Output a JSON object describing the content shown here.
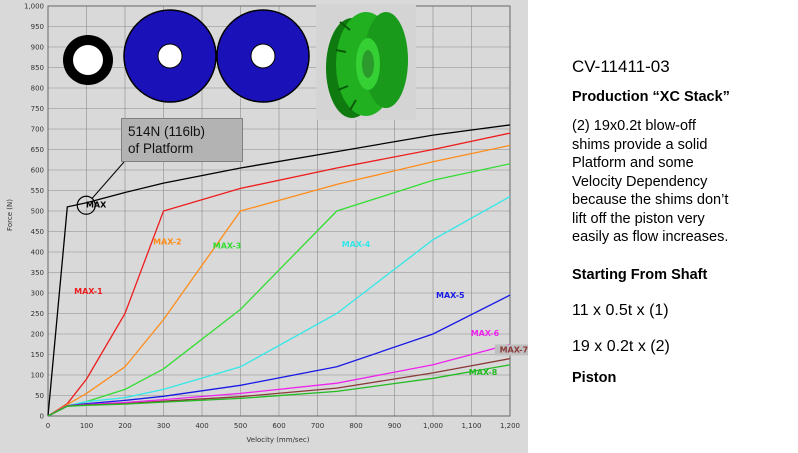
{
  "chart_data": {
    "type": "line",
    "title": "",
    "xlabel": "Velocity (mm/sec)",
    "ylabel": "Force (N)",
    "xlim": [
      0,
      1200
    ],
    "ylim": [
      0,
      1000
    ],
    "xticks": [
      0,
      100,
      200,
      300,
      400,
      500,
      600,
      700,
      800,
      900,
      1000,
      1100,
      1200
    ],
    "yticks": [
      0,
      50,
      100,
      150,
      200,
      250,
      300,
      350,
      400,
      450,
      500,
      550,
      600,
      650,
      700,
      750,
      800,
      850,
      900,
      950,
      1000
    ],
    "xtick_labels": [
      "0",
      "100",
      "200",
      "300",
      "400",
      "500",
      "600",
      "700",
      "800",
      "900",
      "1,000",
      "1,100",
      "1,200"
    ],
    "ytick_labels": [
      "0",
      "50",
      "100",
      "150",
      "200",
      "250",
      "300",
      "350",
      "400",
      "450",
      "500",
      "550",
      "600",
      "650",
      "700",
      "750",
      "800",
      "850",
      "900",
      "950",
      "1,000"
    ],
    "grid": true,
    "series": [
      {
        "name": "MAX",
        "color": "#000000",
        "x": [
          0,
          50,
          100,
          200,
          300,
          500,
          750,
          1000,
          1200
        ],
        "y": [
          0,
          510,
          520,
          545,
          568,
          605,
          645,
          685,
          710
        ]
      },
      {
        "name": "MAX-1",
        "color": "#ee1c1c",
        "x": [
          0,
          50,
          100,
          200,
          300,
          500,
          750,
          1000,
          1200
        ],
        "y": [
          0,
          30,
          90,
          250,
          500,
          555,
          605,
          650,
          690
        ]
      },
      {
        "name": "MAX-2",
        "color": "#ff8c1a",
        "x": [
          0,
          50,
          100,
          200,
          300,
          500,
          750,
          1000,
          1200
        ],
        "y": [
          0,
          28,
          55,
          120,
          235,
          500,
          565,
          620,
          660
        ]
      },
      {
        "name": "MAX-3",
        "color": "#33dd33",
        "x": [
          0,
          50,
          100,
          200,
          300,
          500,
          750,
          1000,
          1200
        ],
        "y": [
          0,
          25,
          35,
          65,
          115,
          260,
          500,
          575,
          615
        ]
      },
      {
        "name": "MAX-4",
        "color": "#33e8e8",
        "x": [
          0,
          50,
          100,
          200,
          300,
          500,
          750,
          1000,
          1200
        ],
        "y": [
          0,
          25,
          35,
          45,
          65,
          120,
          250,
          430,
          535
        ]
      },
      {
        "name": "MAX-5",
        "color": "#1a1ae6",
        "x": [
          0,
          50,
          100,
          200,
          300,
          500,
          750,
          1000,
          1200
        ],
        "y": [
          0,
          25,
          30,
          38,
          48,
          75,
          120,
          200,
          295
        ]
      },
      {
        "name": "MAX-6",
        "color": "#ee22ee",
        "x": [
          0,
          50,
          100,
          200,
          300,
          500,
          750,
          1000,
          1200
        ],
        "y": [
          0,
          25,
          28,
          33,
          40,
          55,
          80,
          125,
          175
        ]
      },
      {
        "name": "MAX-7",
        "color": "#8b3a3a",
        "x": [
          0,
          50,
          100,
          200,
          300,
          500,
          750,
          1000,
          1200
        ],
        "y": [
          0,
          24,
          27,
          30,
          36,
          47,
          68,
          105,
          140
        ]
      },
      {
        "name": "MAX-8",
        "color": "#22bb22",
        "x": [
          0,
          50,
          100,
          200,
          300,
          500,
          750,
          1000,
          1200
        ],
        "y": [
          0,
          24,
          26,
          29,
          34,
          43,
          60,
          92,
          125
        ]
      }
    ],
    "annotations": [
      {
        "text": "MAX",
        "x": 125,
        "y": 508,
        "color": "#000000"
      },
      {
        "text": "MAX-1",
        "x": 105,
        "y": 298,
        "color": "#ee1c1c"
      },
      {
        "text": "MAX-2",
        "x": 310,
        "y": 418,
        "color": "#ff8c1a"
      },
      {
        "text": "MAX-3",
        "x": 465,
        "y": 408,
        "color": "#33dd33"
      },
      {
        "text": "MAX-4",
        "x": 800,
        "y": 412,
        "color": "#33e8e8"
      },
      {
        "text": "MAX-5",
        "x": 1045,
        "y": 288,
        "color": "#1a1ae6"
      },
      {
        "text": "MAX-6",
        "x": 1135,
        "y": 195,
        "color": "#ee22ee"
      },
      {
        "text": "MAX-7",
        "x": 1210,
        "y": 155,
        "color": "#8b3a3a",
        "box": true
      },
      {
        "text": "MAX-8",
        "x": 1130,
        "y": 100,
        "color": "#22bb22"
      }
    ],
    "callout": {
      "line1": "514N (116lb)",
      "line2": "of Platform",
      "target_x": 50,
      "target_y": 514
    }
  },
  "right_panel": {
    "part_number": "CV-11411-03",
    "heading": "Production “XC Stack”",
    "description": "(2) 19x0.2t blow-off\nshims provide a solid\nPlatform and some\nVelocity Dependency\nbecause the shims don’t\nlift off the piston very\neasily as flow increases.",
    "subheading": "Starting From Shaft",
    "stack_line_1": "11 x 0.5t x (1)",
    "stack_line_2": "19 x 0.2t x (2)",
    "final_label": "Piston"
  },
  "colors": {
    "chart_background": "#d9d9d9",
    "grid": "#8c8c8c",
    "shim_fill": "#1a12b8",
    "piston_green": "#1fae1f"
  },
  "icons": [
    "shim-ring-small-icon",
    "shim-ring-large-icon",
    "shim-ring-large-icon",
    "piston-3d-image"
  ]
}
